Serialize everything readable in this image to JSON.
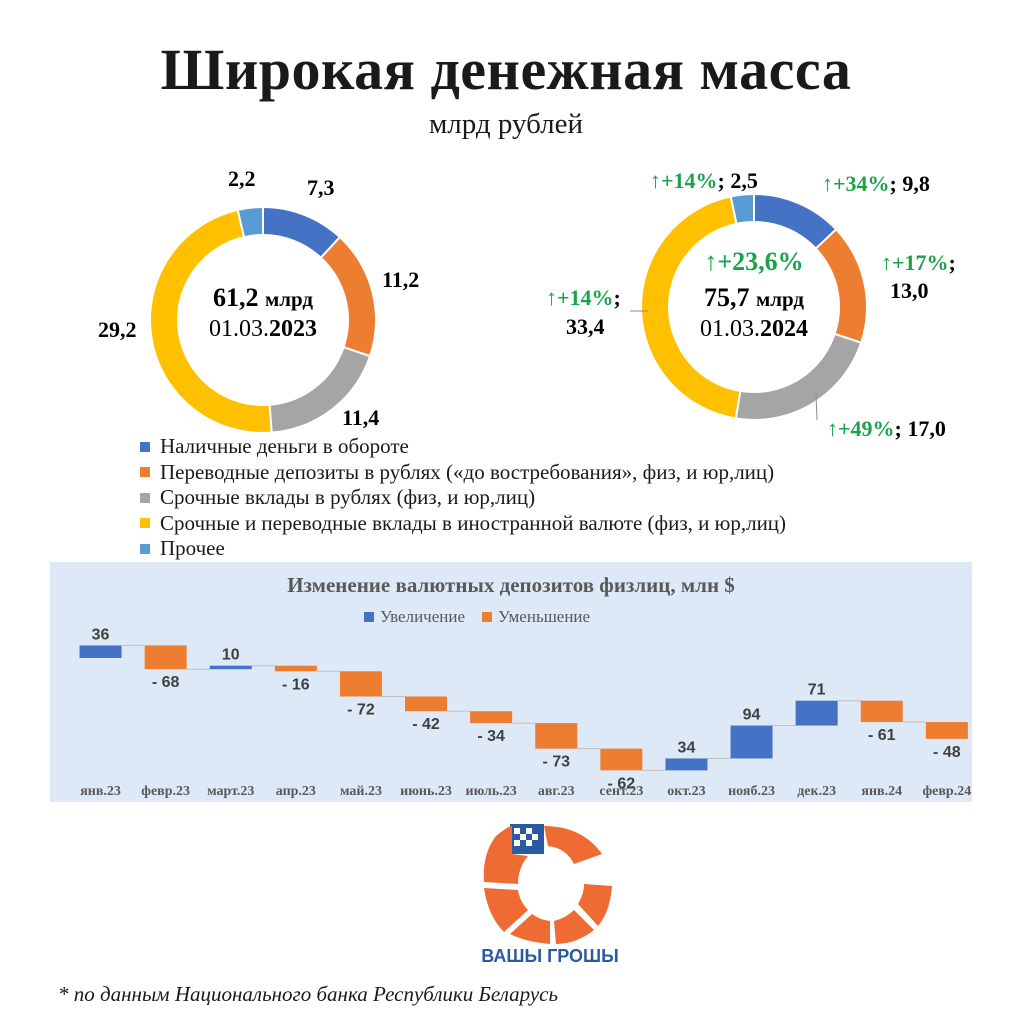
{
  "header": {
    "title": "Широкая денежная масса",
    "subtitle": "млрд рублей"
  },
  "colors": {
    "cash": "#4472c4",
    "transfer": "#ed7d31",
    "term": "#a5a5a5",
    "fx": "#ffc000",
    "other": "#5b9bd5",
    "growth": "#1aa34a",
    "increase": "#4472c4",
    "decrease": "#ed7d31",
    "panel": "#dde9f6"
  },
  "chart_data": [
    {
      "type": "pie",
      "variant": "donut",
      "date_label": "01.03.",
      "year": "2023",
      "total_value": "61,2",
      "total_unit": "млрд",
      "series": [
        {
          "name": "Наличные деньги в обороте",
          "value": 7.3,
          "label": "7,3"
        },
        {
          "name": "Переводные депозиты в рублях",
          "value": 11.2,
          "label": "11,2"
        },
        {
          "name": "Срочные вклады в рублях",
          "value": 11.4,
          "label": "11,4"
        },
        {
          "name": "Срочные и переводные вклады в иностранной валюте",
          "value": 29.2,
          "label": "29,2"
        },
        {
          "name": "Прочее",
          "value": 2.2,
          "label": "2,2"
        }
      ]
    },
    {
      "type": "pie",
      "variant": "donut",
      "date_label": "01.03.",
      "year": "2024",
      "total_value": "75,7",
      "total_unit": "млрд",
      "total_change": "↑+23,6%",
      "series": [
        {
          "name": "Наличные деньги в обороте",
          "value": 9.8,
          "label": "9,8",
          "change": "↑+34%"
        },
        {
          "name": "Переводные депозиты в рублях",
          "value": 13.0,
          "label": "13,0",
          "change": "↑+17%"
        },
        {
          "name": "Срочные вклады в рублях",
          "value": 17.0,
          "label": "17,0",
          "change": "↑+49%"
        },
        {
          "name": "Срочные и переводные вклады в иностранной валюте",
          "value": 33.4,
          "label": "33,4",
          "change": "↑+14%"
        },
        {
          "name": "Прочее",
          "value": 2.5,
          "label": "2,5",
          "change": "↑+14%"
        }
      ]
    },
    {
      "type": "bar",
      "variant": "waterfall",
      "title": "Изменение валютных депозитов физлиц, млн $",
      "legend": [
        "Увеличение",
        "Уменьшение"
      ],
      "categories": [
        "янв.23",
        "февр.23",
        "март.23",
        "апр.23",
        "май.23",
        "июнь.23",
        "июль.23",
        "авг.23",
        "сент.23",
        "окт.23",
        "нояб.23",
        "дек.23",
        "янв.24",
        "февр.24"
      ],
      "values": [
        36,
        -68,
        10,
        -16,
        -72,
        -42,
        -34,
        -73,
        -62,
        34,
        94,
        71,
        -61,
        -48
      ],
      "labels": [
        "36",
        "- 68",
        "10",
        "- 16",
        "- 72",
        "- 42",
        "- 34",
        "- 73",
        "- 62",
        "34",
        "94",
        "71",
        "- 61",
        "- 48"
      ]
    }
  ],
  "legend": {
    "items": [
      {
        "label": "Наличные деньги в обороте",
        "color": "#4472c4"
      },
      {
        "label": "Переводные депозиты в рублях («до востребования», физ, и юр,лиц)",
        "color": "#ed7d31"
      },
      {
        "label": "Срочные вклады в рублях (физ, и юр,лиц)",
        "color": "#a5a5a5"
      },
      {
        "label": "Срочные и переводные вклады в иностранной валюте (физ, и юр,лиц)",
        "color": "#ffc000"
      },
      {
        "label": "Прочее",
        "color": "#5b9bd5"
      }
    ]
  },
  "logo": {
    "text": "ВАШЫ ГРОШЫ"
  },
  "footnote": "* по данным Национального банка Республики Беларусь"
}
